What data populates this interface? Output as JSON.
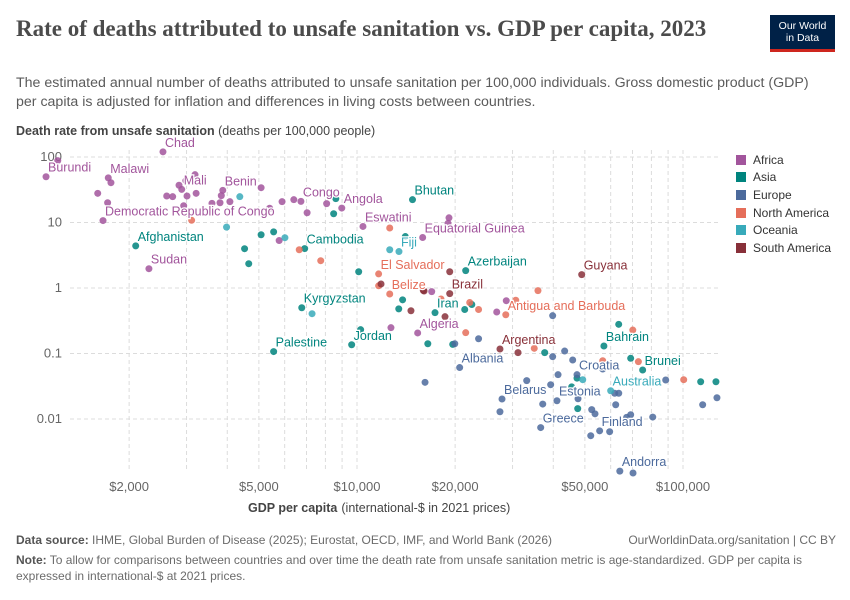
{
  "title": "Rate of deaths attributed to unsafe sanitation vs. GDP per capita, 2023",
  "subtitle": "The estimated annual number of deaths attributed to unsafe sanitation per 100,000 individuals. Gross domestic product (GDP) per capita is adjusted for inflation and differences in living costs between countries.",
  "logo": {
    "line1": "Our World",
    "line2": "in Data"
  },
  "footer": {
    "source_label": "Data source:",
    "source": "IHME, Global Burden of Disease (2025); Eurostat, OECD, IMF, and World Bank (2026)",
    "url": "OurWorldinData.org/sanitation | CC BY",
    "note_label": "Note:",
    "note": "To allow for comparisons between countries and over time the death rate from unsafe sanitation metric is age-standardized. GDP per capita is expressed in international-$ at 2021 prices."
  },
  "chart_data": {
    "type": "scatter",
    "title": "Rate of deaths attributed to unsafe sanitation vs. GDP per capita, 2023",
    "ylabel_bold": "Death rate from unsafe sanitation",
    "ylabel_unit": "(deaths per 100,000 people)",
    "xlabel_bold": "GDP per capita",
    "xlabel_unit": "(international-$ in 2021 prices)",
    "xscale": "log",
    "yscale": "log",
    "xlim": [
      1000,
      130000
    ],
    "ylim": [
      0.0013,
      130
    ],
    "xticks": [
      {
        "v": 2000,
        "l": "$2,000"
      },
      {
        "v": 5000,
        "l": "$5,000"
      },
      {
        "v": 10000,
        "l": "$10,000"
      },
      {
        "v": 20000,
        "l": "$20,000"
      },
      {
        "v": 50000,
        "l": "$50,000"
      },
      {
        "v": 100000,
        "l": "$100,000"
      }
    ],
    "yticks": [
      {
        "v": 100,
        "l": "100"
      },
      {
        "v": 10,
        "l": "10"
      },
      {
        "v": 1,
        "l": "1"
      },
      {
        "v": 0.1,
        "l": "0.1"
      },
      {
        "v": 0.01,
        "l": "0.01"
      }
    ],
    "grid": true,
    "legend_position": "right",
    "series": [
      {
        "name": "Africa",
        "color": "#a2559c",
        "points": [
          {
            "x": 1112,
            "y": 50,
            "label": "Burundi"
          },
          {
            "x": 2540,
            "y": 120,
            "label": "Chad"
          },
          {
            "x": 1726,
            "y": 48,
            "label": "Malawi"
          },
          {
            "x": 2900,
            "y": 32,
            "label": "Mali"
          },
          {
            "x": 3875,
            "y": 31,
            "label": "Benin"
          },
          {
            "x": 6730,
            "y": 21,
            "label": "Congo"
          },
          {
            "x": 8980,
            "y": 16.6,
            "label": "Angola"
          },
          {
            "x": 1663,
            "y": 10.7,
            "label": "Democratic Republic of Congo"
          },
          {
            "x": 10430,
            "y": 8.7,
            "label": "Eswatini"
          },
          {
            "x": 2300,
            "y": 1.97,
            "label": "Sudan"
          },
          {
            "x": 15900,
            "y": 5.9,
            "label": "Equatorial Guinea"
          },
          {
            "x": 15350,
            "y": 0.206,
            "label": "Algeria"
          },
          {
            "x": 1208,
            "y": 88
          },
          {
            "x": 1602,
            "y": 27.9
          },
          {
            "x": 1718,
            "y": 20
          },
          {
            "x": 1759,
            "y": 40.5
          },
          {
            "x": 2608,
            "y": 25.4
          },
          {
            "x": 2720,
            "y": 24.8
          },
          {
            "x": 2845,
            "y": 37
          },
          {
            "x": 2985,
            "y": 43.5
          },
          {
            "x": 3010,
            "y": 25.4
          },
          {
            "x": 2940,
            "y": 18
          },
          {
            "x": 3185,
            "y": 53.7
          },
          {
            "x": 3210,
            "y": 27.9
          },
          {
            "x": 3590,
            "y": 19.6
          },
          {
            "x": 3800,
            "y": 20
          },
          {
            "x": 3835,
            "y": 25.7
          },
          {
            "x": 4075,
            "y": 20.8
          },
          {
            "x": 5080,
            "y": 34
          },
          {
            "x": 5395,
            "y": 16.5
          },
          {
            "x": 5770,
            "y": 5.3
          },
          {
            "x": 5890,
            "y": 20.8
          },
          {
            "x": 6400,
            "y": 22.3
          },
          {
            "x": 7030,
            "y": 14.1
          },
          {
            "x": 8070,
            "y": 19.4
          },
          {
            "x": 12710,
            "y": 0.248
          },
          {
            "x": 19150,
            "y": 11.8
          },
          {
            "x": 19020,
            "y": 9.7
          },
          {
            "x": 16950,
            "y": 0.88
          },
          {
            "x": 28700,
            "y": 0.64
          },
          {
            "x": 26830,
            "y": 0.43
          }
        ]
      },
      {
        "name": "Asia",
        "color": "#00847e",
        "points": [
          {
            "x": 2095,
            "y": 4.4,
            "label": "Afghanistan"
          },
          {
            "x": 6910,
            "y": 4.0,
            "label": "Cambodia"
          },
          {
            "x": 6770,
            "y": 0.5,
            "label": "Kyrgyzstan"
          },
          {
            "x": 5550,
            "y": 0.107,
            "label": "Palestine"
          },
          {
            "x": 9630,
            "y": 0.136,
            "label": "Jordan"
          },
          {
            "x": 14800,
            "y": 22.3,
            "label": "Bhutan"
          },
          {
            "x": 21550,
            "y": 1.84,
            "label": "Azerbaijan"
          },
          {
            "x": 17350,
            "y": 0.42,
            "label": "Iran"
          },
          {
            "x": 57200,
            "y": 0.13,
            "label": "Bahrain"
          },
          {
            "x": 75200,
            "y": 0.056,
            "label": "Brunei"
          },
          {
            "x": 4520,
            "y": 3.98
          },
          {
            "x": 4655,
            "y": 2.35
          },
          {
            "x": 5080,
            "y": 6.5
          },
          {
            "x": 5550,
            "y": 7.2
          },
          {
            "x": 8480,
            "y": 13.6
          },
          {
            "x": 8610,
            "y": 23.1
          },
          {
            "x": 10120,
            "y": 1.77
          },
          {
            "x": 10260,
            "y": 0.231
          },
          {
            "x": 13430,
            "y": 0.48
          },
          {
            "x": 13800,
            "y": 0.66
          },
          {
            "x": 16490,
            "y": 0.141
          },
          {
            "x": 14070,
            "y": 6.1
          },
          {
            "x": 19660,
            "y": 0.138
          },
          {
            "x": 21400,
            "y": 0.47
          },
          {
            "x": 22500,
            "y": 0.56
          },
          {
            "x": 37650,
            "y": 0.103
          },
          {
            "x": 45560,
            "y": 0.031
          },
          {
            "x": 47540,
            "y": 0.0144
          },
          {
            "x": 47300,
            "y": 0.042
          },
          {
            "x": 63500,
            "y": 0.279
          },
          {
            "x": 69100,
            "y": 0.0845
          },
          {
            "x": 113300,
            "y": 0.037
          },
          {
            "x": 126200,
            "y": 0.037
          }
        ]
      },
      {
        "name": "Europe",
        "color": "#4c6a9c",
        "points": [
          {
            "x": 20650,
            "y": 0.061,
            "label": "Albania"
          },
          {
            "x": 47300,
            "y": 0.0475,
            "label": "Croatia"
          },
          {
            "x": 27850,
            "y": 0.0202,
            "label": "Belarus"
          },
          {
            "x": 41050,
            "y": 0.019,
            "label": "Estonia"
          },
          {
            "x": 36600,
            "y": 0.0074,
            "label": "Greece"
          },
          {
            "x": 55500,
            "y": 0.0066,
            "label": "Finland"
          },
          {
            "x": 64000,
            "y": 0.0016,
            "label": "Andorra"
          },
          {
            "x": 16170,
            "y": 0.0363
          },
          {
            "x": 19950,
            "y": 0.141
          },
          {
            "x": 23600,
            "y": 0.168
          },
          {
            "x": 27450,
            "y": 0.0129
          },
          {
            "x": 33160,
            "y": 0.0385
          },
          {
            "x": 37130,
            "y": 0.0169
          },
          {
            "x": 39270,
            "y": 0.0334
          },
          {
            "x": 39830,
            "y": 0.0894
          },
          {
            "x": 39830,
            "y": 0.378
          },
          {
            "x": 41370,
            "y": 0.0475
          },
          {
            "x": 43350,
            "y": 0.109
          },
          {
            "x": 45880,
            "y": 0.0796
          },
          {
            "x": 47640,
            "y": 0.0204
          },
          {
            "x": 52120,
            "y": 0.00556
          },
          {
            "x": 52480,
            "y": 0.0139
          },
          {
            "x": 53720,
            "y": 0.012
          },
          {
            "x": 56720,
            "y": 0.058
          },
          {
            "x": 59570,
            "y": 0.0064
          },
          {
            "x": 62170,
            "y": 0.0165
          },
          {
            "x": 63520,
            "y": 0.0247
          },
          {
            "x": 61730,
            "y": 0.0247
          },
          {
            "x": 69100,
            "y": 0.0116
          },
          {
            "x": 80750,
            "y": 0.0107
          },
          {
            "x": 88500,
            "y": 0.0394
          },
          {
            "x": 114900,
            "y": 0.0165
          },
          {
            "x": 127100,
            "y": 0.0211
          },
          {
            "x": 67150,
            "y": 0.0106
          },
          {
            "x": 70260,
            "y": 0.0015
          }
        ]
      },
      {
        "name": "North America",
        "color": "#e56e5a",
        "points": [
          {
            "x": 11650,
            "y": 1.64,
            "label": "El Salvador"
          },
          {
            "x": 12600,
            "y": 0.81,
            "label": "Belize"
          },
          {
            "x": 28600,
            "y": 0.39,
            "label": "Antigua and Barbuda"
          },
          {
            "x": 3110,
            "y": 10.8
          },
          {
            "x": 6650,
            "y": 3.84
          },
          {
            "x": 7740,
            "y": 2.61
          },
          {
            "x": 12600,
            "y": 8.24
          },
          {
            "x": 11650,
            "y": 1.08
          },
          {
            "x": 35900,
            "y": 0.91
          },
          {
            "x": 30690,
            "y": 0.65
          },
          {
            "x": 22170,
            "y": 0.6
          },
          {
            "x": 23600,
            "y": 0.47
          },
          {
            "x": 18100,
            "y": 0.68
          },
          {
            "x": 21550,
            "y": 0.208
          },
          {
            "x": 34970,
            "y": 0.12
          },
          {
            "x": 56720,
            "y": 0.0776
          },
          {
            "x": 70140,
            "y": 0.228
          },
          {
            "x": 72970,
            "y": 0.075
          },
          {
            "x": 100500,
            "y": 0.0398
          }
        ]
      },
      {
        "name": "Oceania",
        "color": "#38aaba",
        "points": [
          {
            "x": 13450,
            "y": 3.6,
            "label": "Fiji"
          },
          {
            "x": 60000,
            "y": 0.027,
            "label": "Australia"
          },
          {
            "x": 4370,
            "y": 24.8
          },
          {
            "x": 3980,
            "y": 8.5
          },
          {
            "x": 6010,
            "y": 5.86
          },
          {
            "x": 7280,
            "y": 0.405
          },
          {
            "x": 12600,
            "y": 3.84
          },
          {
            "x": 49250,
            "y": 0.0398
          }
        ]
      },
      {
        "name": "South America",
        "color": "#883039",
        "points": [
          {
            "x": 19250,
            "y": 0.82,
            "label": "Brazil"
          },
          {
            "x": 27450,
            "y": 0.117,
            "label": "Argentina"
          },
          {
            "x": 48900,
            "y": 1.6,
            "label": "Guyana"
          },
          {
            "x": 11850,
            "y": 1.15
          },
          {
            "x": 14640,
            "y": 0.45
          },
          {
            "x": 16060,
            "y": 0.9
          },
          {
            "x": 19250,
            "y": 1.77
          },
          {
            "x": 18620,
            "y": 0.365
          },
          {
            "x": 15970,
            "y": 0.92
          },
          {
            "x": 31180,
            "y": 0.103
          }
        ]
      }
    ]
  }
}
